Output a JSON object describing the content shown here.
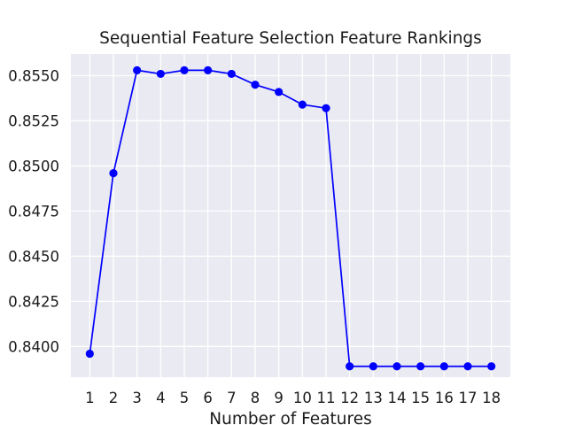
{
  "chart_data": {
    "type": "line",
    "title": "Sequential Feature Selection Feature Rankings",
    "xlabel": "Number of Features",
    "ylabel": "",
    "x": [
      1,
      2,
      3,
      4,
      5,
      6,
      7,
      8,
      9,
      10,
      11,
      12,
      13,
      14,
      15,
      16,
      17,
      18
    ],
    "series": [
      {
        "values": [
          0.8396,
          0.8496,
          0.8553,
          0.8551,
          0.8553,
          0.8553,
          0.8551,
          0.8545,
          0.8541,
          0.8534,
          0.8532,
          0.8389,
          0.8389,
          0.8389,
          0.8389,
          0.8389,
          0.8389,
          0.8389
        ],
        "color": "#0000ff",
        "marker": "circle"
      }
    ],
    "xticks": [
      "1",
      "2",
      "3",
      "4",
      "5",
      "6",
      "7",
      "8",
      "9",
      "10",
      "11",
      "12",
      "13",
      "14",
      "15",
      "16",
      "17",
      "18"
    ],
    "yticks": [
      "0.8400",
      "0.8425",
      "0.8450",
      "0.8475",
      "0.8500",
      "0.8525",
      "0.8550"
    ],
    "xlim": [
      0.2,
      18.8
    ],
    "ylim": [
      0.8383,
      0.8562
    ],
    "grid": true,
    "background_color": "#eaeaf2",
    "legend": "none"
  }
}
